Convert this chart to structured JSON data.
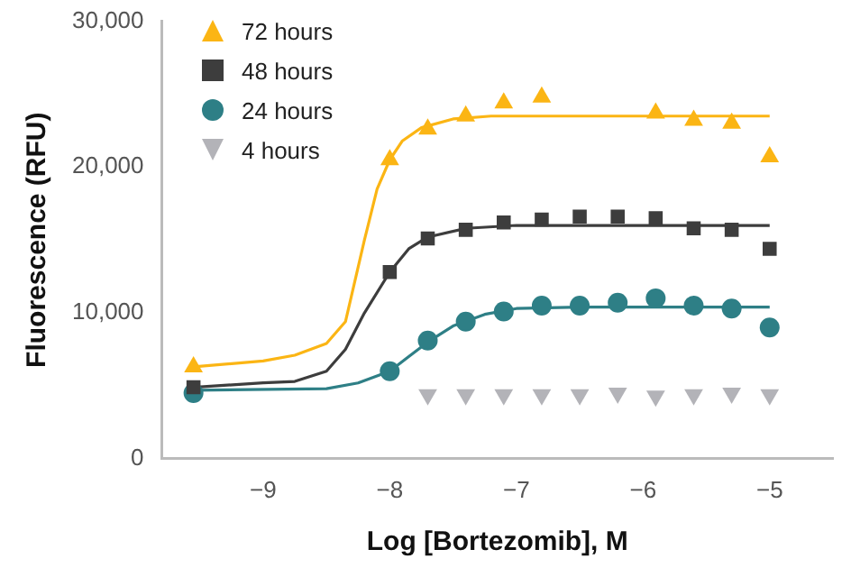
{
  "chart_data": {
    "type": "scatter",
    "xlabel": "Log [Bortezomib], M",
    "ylabel": "Fluorescence (RFU)",
    "x": [
      -9.55,
      -8,
      -7.7,
      -7.4,
      -7.1,
      -6.8,
      -6.5,
      -6.2,
      -5.9,
      -5.6,
      -5.3,
      -5
    ],
    "xlim": [
      -9.8,
      -4.5
    ],
    "xticks": [
      {
        "value": -9,
        "label": "−9"
      },
      {
        "value": -8,
        "label": "−8"
      },
      {
        "value": -7,
        "label": "−7"
      },
      {
        "value": -6,
        "label": "−6"
      },
      {
        "value": -5,
        "label": "−5"
      }
    ],
    "ylim": [
      0,
      30000
    ],
    "yticks": [
      0,
      {
        "value": 10000,
        "label": "10,000"
      },
      {
        "value": 20000,
        "label": "20,000"
      },
      {
        "value": 30000,
        "label": "30,000"
      }
    ],
    "grid": false,
    "legend": "top left",
    "series": [
      {
        "name": "72 hours",
        "color": "#fbb514",
        "marker": "triangle",
        "values": [
          6300,
          20500,
          22600,
          23500,
          24400,
          24800,
          null,
          null,
          23700,
          23200,
          23000,
          20700
        ]
      },
      {
        "name": "48 hours",
        "color": "#3d3d3d",
        "marker": "square",
        "values": [
          4900,
          12800,
          15100,
          15700,
          16200,
          16400,
          16600,
          16600,
          16500,
          15800,
          15700,
          14400
        ]
      },
      {
        "name": "24 hours",
        "color": "#2e7f86",
        "marker": "circle",
        "values": [
          4500,
          6000,
          8100,
          9400,
          10100,
          10500,
          10500,
          10700,
          11000,
          10500,
          10300,
          9000
        ]
      },
      {
        "name": "4 hours",
        "color": "#b3b3b8",
        "marker": "triangle-down",
        "values": [
          null,
          null,
          4400,
          4400,
          4400,
          4400,
          4400,
          4500,
          4300,
          4400,
          4500,
          4400
        ]
      },
      {
        "type": "line",
        "color": "#fbb514",
        "marker": "none",
        "x": [
          -9.55,
          -9,
          -8.75,
          -8.5,
          -8.35,
          -8.2,
          -8.1,
          -8,
          -7.9,
          -7.75,
          -7.5,
          -7.2,
          -5
        ],
        "values": [
          6300,
          6700,
          7100,
          7900,
          9400,
          15000,
          18500,
          20500,
          21800,
          22700,
          23300,
          23500,
          23500
        ]
      },
      {
        "type": "line",
        "color": "#3d3d3d",
        "marker": "none",
        "x": [
          -9.55,
          -9,
          -8.75,
          -8.5,
          -8.35,
          -8.2,
          -8,
          -7.85,
          -7.7,
          -7.4,
          -7,
          -5
        ],
        "values": [
          4900,
          5200,
          5300,
          6000,
          7500,
          10000,
          12800,
          14400,
          15200,
          15800,
          16000,
          16000
        ]
      },
      {
        "type": "line",
        "color": "#2e7f86",
        "marker": "none",
        "x": [
          -9.55,
          -8.5,
          -8.25,
          -8,
          -7.85,
          -7.7,
          -7.5,
          -7.25,
          -7,
          -6.5,
          -5
        ],
        "values": [
          4700,
          4800,
          5200,
          6000,
          7000,
          8000,
          9100,
          9900,
          10300,
          10400,
          10400
        ]
      }
    ]
  }
}
